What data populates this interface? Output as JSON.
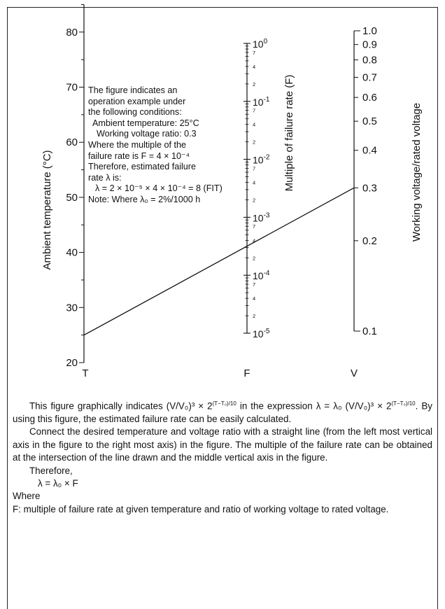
{
  "note": {
    "lines": [
      "The figure indicates an",
      "operation example under",
      "the following conditions:",
      "Ambient temperature: 25°C",
      "Working voltage ratio: 0.3",
      "Where the multiple of the",
      "failure rate is F = 4 × 10⁻⁴",
      "Therefore, estimated failure",
      "rate λ is:",
      "λ = 2 × 10⁻⁵ × 4 × 10⁻⁴ = 8 (FIT)",
      "Note: Where λ₀ = 2%/1000 h"
    ]
  },
  "axes": {
    "left": {
      "title": "Ambient temperature (°C)",
      "letter": "T",
      "ticks": [
        "80",
        "70",
        "60",
        "50",
        "40",
        "30",
        "20"
      ],
      "range": [
        20,
        85
      ]
    },
    "middle": {
      "title": "Multiple of failure rate (F)",
      "letter": "F",
      "scale": "log",
      "decades": [
        {
          "base": "10",
          "exp": "0"
        },
        {
          "base": "10",
          "exp": "-1"
        },
        {
          "base": "10",
          "exp": "-2"
        },
        {
          "base": "10",
          "exp": "-3"
        },
        {
          "base": "10",
          "exp": "-4"
        },
        {
          "base": "10",
          "exp": "-5"
        }
      ],
      "minor_labels": [
        "7",
        "4",
        "2"
      ]
    },
    "right": {
      "title": "Working voltage/rated voltage",
      "letter": "V",
      "scale": "log",
      "ticks": [
        "1.0",
        "0.9",
        "0.8",
        "0.7",
        "0.6",
        "0.5",
        "0.4",
        "0.3",
        "0.2",
        "0.1"
      ]
    }
  },
  "example_line": {
    "temperature": 25,
    "voltage_ratio": 0.3,
    "failure_multiple": 0.0004
  },
  "text": {
    "p1_a": "This figure graphically indicates (V/V₀)³ × 2",
    "p1_sup1": "(T−T₀)/10",
    "p1_b": " in the expression λ = λ₀ (V/V₀)³ × 2",
    "p1_sup2": "(T−T₀)/10",
    "p1_c": ". By using this figure, the estimated failure rate can be easily calculated.",
    "p2": "Connect the desired temperature and voltage ratio with a straight line (from the left most vertical axis in the figure to the right most axis) in the figure. The multiple of the failure rate can be obtained at the intersection of the line drawn and the middle vertical axis in the figure.",
    "p3": "Therefore,",
    "p4": "λ = λ₀ × F",
    "p5": "Where",
    "p6": "F: multiple of failure rate at given temperature and ratio of working voltage to rated voltage."
  }
}
